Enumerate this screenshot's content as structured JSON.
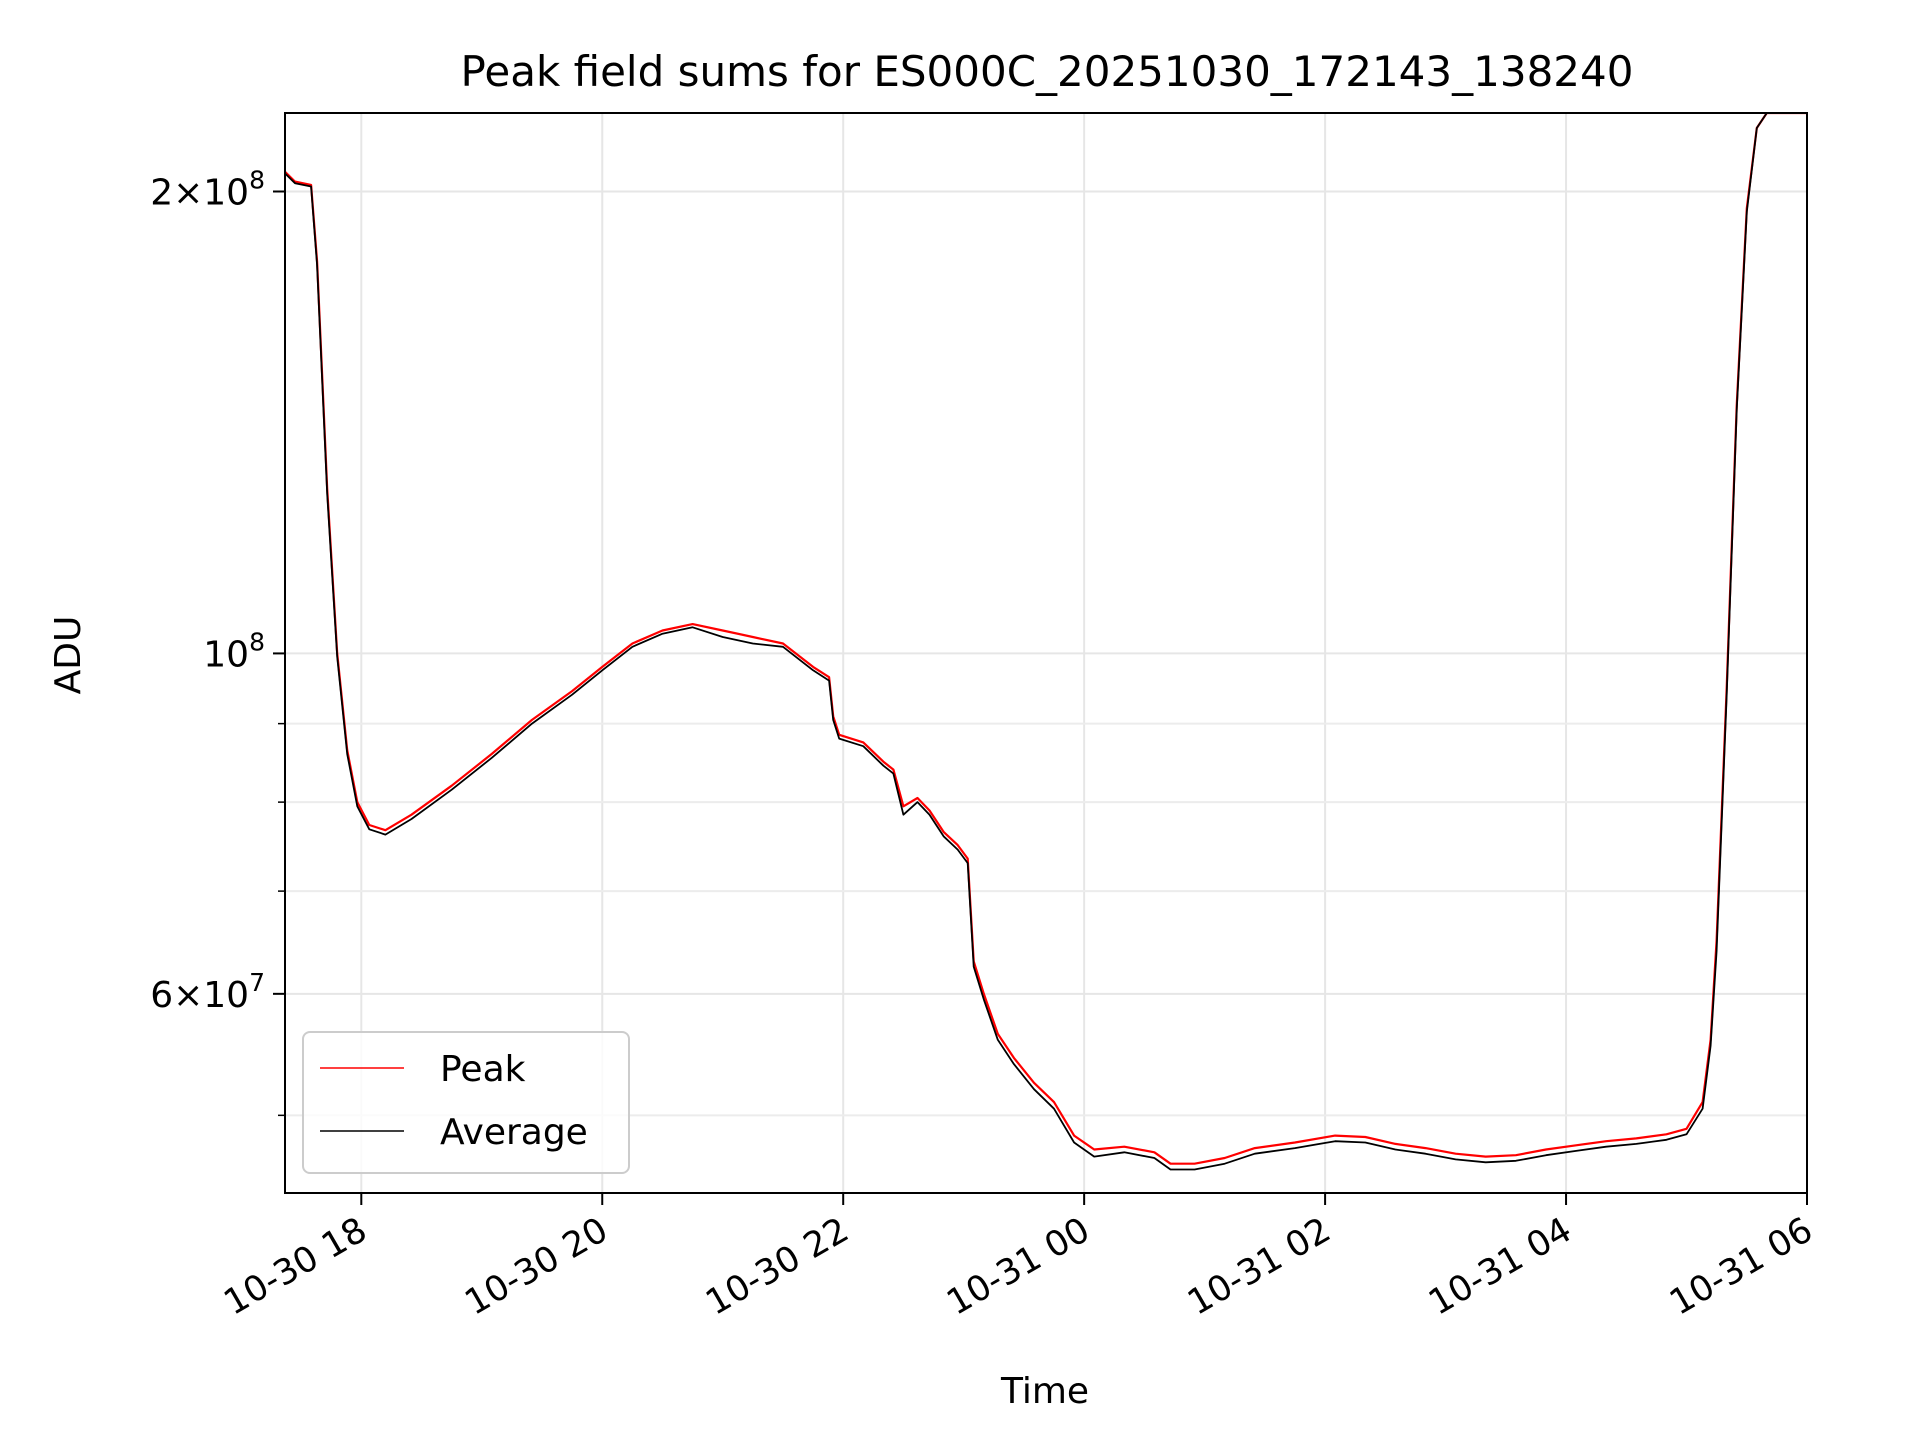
{
  "chart_data": {
    "type": "line",
    "title": "Peak field sums for ES000C_20251030_172143_138240",
    "xlabel": "Time",
    "ylabel": "ADU",
    "yscale": "log",
    "xlim": [
      "2025-10-30 17:22",
      "2025-10-31 06:00"
    ],
    "ylim": [
      44500000,
      225000000
    ],
    "x_ticks": [
      {
        "value": "2025-10-30 18:00",
        "label": "10-30 18"
      },
      {
        "value": "2025-10-30 20:00",
        "label": "10-30 20"
      },
      {
        "value": "2025-10-30 22:00",
        "label": "10-30 22"
      },
      {
        "value": "2025-10-31 00:00",
        "label": "10-31 00"
      },
      {
        "value": "2025-10-31 02:00",
        "label": "10-31 02"
      },
      {
        "value": "2025-10-31 04:00",
        "label": "10-31 04"
      },
      {
        "value": "2025-10-31 06:00",
        "label": "10-31 06"
      }
    ],
    "y_ticks_major": [
      {
        "value": 200000000,
        "mantissa": "2",
        "times": "×",
        "base": "10",
        "exponent": "8"
      },
      {
        "value": 100000000,
        "mantissa": "",
        "times": "",
        "base": "10",
        "exponent": "8"
      },
      {
        "value": 60000000,
        "mantissa": "6",
        "times": "×",
        "base": "10",
        "exponent": "7"
      }
    ],
    "y_ticks_minor": [
      50000000,
      70000000,
      80000000,
      90000000
    ],
    "grid": true,
    "legend_position": "lower-left",
    "series": [
      {
        "name": "Peak",
        "color": "#ff0000",
        "points": [
          [
            "2025-10-30 17:22",
            206000000
          ],
          [
            "2025-10-30 17:27",
            203000000
          ],
          [
            "2025-10-30 17:35",
            202000000
          ],
          [
            "2025-10-30 17:38",
            180000000
          ],
          [
            "2025-10-30 17:43",
            128000000
          ],
          [
            "2025-10-30 17:48",
            100000000
          ],
          [
            "2025-10-30 17:53",
            86500000
          ],
          [
            "2025-10-30 17:58",
            80000000
          ],
          [
            "2025-10-30 18:04",
            77300000
          ],
          [
            "2025-10-30 18:12",
            76700000
          ],
          [
            "2025-10-30 18:25",
            78500000
          ],
          [
            "2025-10-30 18:45",
            82000000
          ],
          [
            "2025-10-30 19:05",
            86000000
          ],
          [
            "2025-10-30 19:25",
            90500000
          ],
          [
            "2025-10-30 19:45",
            94500000
          ],
          [
            "2025-10-30 20:00",
            98000000
          ],
          [
            "2025-10-30 20:15",
            101500000
          ],
          [
            "2025-10-30 20:30",
            103500000
          ],
          [
            "2025-10-30 20:45",
            104500000
          ],
          [
            "2025-10-30 21:00",
            103500000
          ],
          [
            "2025-10-30 21:15",
            102500000
          ],
          [
            "2025-10-30 21:30",
            101500000
          ],
          [
            "2025-10-30 21:45",
            98000000
          ],
          [
            "2025-10-30 21:53",
            96500000
          ],
          [
            "2025-10-30 21:55",
            91000000
          ],
          [
            "2025-10-30 21:58",
            88500000
          ],
          [
            "2025-10-30 22:10",
            87500000
          ],
          [
            "2025-10-30 22:20",
            85000000
          ],
          [
            "2025-10-30 22:25",
            84000000
          ],
          [
            "2025-10-30 22:30",
            79500000
          ],
          [
            "2025-10-30 22:37",
            80500000
          ],
          [
            "2025-10-30 22:43",
            79000000
          ],
          [
            "2025-10-30 22:50",
            76500000
          ],
          [
            "2025-10-30 22:57",
            75000000
          ],
          [
            "2025-10-30 23:02",
            73500000
          ],
          [
            "2025-10-30 23:05",
            63000000
          ],
          [
            "2025-10-30 23:10",
            60000000
          ],
          [
            "2025-10-30 23:17",
            56500000
          ],
          [
            "2025-10-30 23:25",
            54500000
          ],
          [
            "2025-10-30 23:35",
            52500000
          ],
          [
            "2025-10-30 23:45",
            51000000
          ],
          [
            "2025-10-30 23:55",
            48500000
          ],
          [
            "2025-10-31 00:05",
            47500000
          ],
          [
            "2025-10-31 00:20",
            47700000
          ],
          [
            "2025-10-31 00:35",
            47300000
          ],
          [
            "2025-10-31 00:43",
            46500000
          ],
          [
            "2025-10-31 00:55",
            46500000
          ],
          [
            "2025-10-31 01:10",
            46900000
          ],
          [
            "2025-10-31 01:25",
            47600000
          ],
          [
            "2025-10-31 01:45",
            48000000
          ],
          [
            "2025-10-31 02:05",
            48500000
          ],
          [
            "2025-10-31 02:20",
            48400000
          ],
          [
            "2025-10-31 02:35",
            47900000
          ],
          [
            "2025-10-31 02:50",
            47600000
          ],
          [
            "2025-10-31 03:05",
            47200000
          ],
          [
            "2025-10-31 03:20",
            47000000
          ],
          [
            "2025-10-31 03:35",
            47100000
          ],
          [
            "2025-10-31 03:50",
            47500000
          ],
          [
            "2025-10-31 04:05",
            47800000
          ],
          [
            "2025-10-31 04:20",
            48100000
          ],
          [
            "2025-10-31 04:35",
            48300000
          ],
          [
            "2025-10-31 04:50",
            48600000
          ],
          [
            "2025-10-31 05:00",
            49000000
          ],
          [
            "2025-10-31 05:08",
            51000000
          ],
          [
            "2025-10-31 05:12",
            56000000
          ],
          [
            "2025-10-31 05:15",
            65000000
          ],
          [
            "2025-10-31 05:20",
            95000000
          ],
          [
            "2025-10-31 05:25",
            145000000
          ],
          [
            "2025-10-31 05:30",
            195000000
          ],
          [
            "2025-10-31 05:35",
            220000000
          ],
          [
            "2025-10-31 05:40",
            225000000
          ],
          [
            "2025-10-31 06:00",
            225000000
          ]
        ]
      },
      {
        "name": "Average",
        "color": "#000000",
        "points": [
          [
            "2025-10-30 17:22",
            205500000
          ],
          [
            "2025-10-30 17:27",
            202500000
          ],
          [
            "2025-10-30 17:35",
            201500000
          ],
          [
            "2025-10-30 17:38",
            179000000
          ],
          [
            "2025-10-30 17:43",
            127000000
          ],
          [
            "2025-10-30 17:48",
            99500000
          ],
          [
            "2025-10-30 17:53",
            86000000
          ],
          [
            "2025-10-30 17:58",
            79500000
          ],
          [
            "2025-10-30 18:04",
            76800000
          ],
          [
            "2025-10-30 18:12",
            76200000
          ],
          [
            "2025-10-30 18:25",
            78000000
          ],
          [
            "2025-10-30 18:45",
            81500000
          ],
          [
            "2025-10-30 19:05",
            85500000
          ],
          [
            "2025-10-30 19:25",
            90000000
          ],
          [
            "2025-10-30 19:45",
            94000000
          ],
          [
            "2025-10-30 20:00",
            97500000
          ],
          [
            "2025-10-30 20:15",
            101000000
          ],
          [
            "2025-10-30 20:30",
            103000000
          ],
          [
            "2025-10-30 20:45",
            104000000
          ],
          [
            "2025-10-30 21:00",
            102500000
          ],
          [
            "2025-10-30 21:15",
            101500000
          ],
          [
            "2025-10-30 21:30",
            101000000
          ],
          [
            "2025-10-30 21:45",
            97500000
          ],
          [
            "2025-10-30 21:53",
            96000000
          ],
          [
            "2025-10-30 21:55",
            90500000
          ],
          [
            "2025-10-30 21:58",
            88000000
          ],
          [
            "2025-10-30 22:10",
            87000000
          ],
          [
            "2025-10-30 22:20",
            84500000
          ],
          [
            "2025-10-30 22:25",
            83500000
          ],
          [
            "2025-10-30 22:30",
            78500000
          ],
          [
            "2025-10-30 22:37",
            80000000
          ],
          [
            "2025-10-30 22:43",
            78500000
          ],
          [
            "2025-10-30 22:50",
            76000000
          ],
          [
            "2025-10-30 22:57",
            74500000
          ],
          [
            "2025-10-30 23:02",
            73000000
          ],
          [
            "2025-10-30 23:05",
            62500000
          ],
          [
            "2025-10-30 23:10",
            59500000
          ],
          [
            "2025-10-30 23:17",
            56000000
          ],
          [
            "2025-10-30 23:25",
            54000000
          ],
          [
            "2025-10-30 23:35",
            52000000
          ],
          [
            "2025-10-30 23:45",
            50500000
          ],
          [
            "2025-10-30 23:55",
            48000000
          ],
          [
            "2025-10-31 00:05",
            47000000
          ],
          [
            "2025-10-31 00:20",
            47300000
          ],
          [
            "2025-10-31 00:35",
            46900000
          ],
          [
            "2025-10-31 00:43",
            46100000
          ],
          [
            "2025-10-31 00:55",
            46100000
          ],
          [
            "2025-10-31 01:10",
            46500000
          ],
          [
            "2025-10-31 01:25",
            47200000
          ],
          [
            "2025-10-31 01:45",
            47600000
          ],
          [
            "2025-10-31 02:05",
            48100000
          ],
          [
            "2025-10-31 02:20",
            48000000
          ],
          [
            "2025-10-31 02:35",
            47500000
          ],
          [
            "2025-10-31 02:50",
            47200000
          ],
          [
            "2025-10-31 03:05",
            46800000
          ],
          [
            "2025-10-31 03:20",
            46600000
          ],
          [
            "2025-10-31 03:35",
            46700000
          ],
          [
            "2025-10-31 03:50",
            47100000
          ],
          [
            "2025-10-31 04:05",
            47400000
          ],
          [
            "2025-10-31 04:20",
            47700000
          ],
          [
            "2025-10-31 04:35",
            47900000
          ],
          [
            "2025-10-31 04:50",
            48200000
          ],
          [
            "2025-10-31 05:00",
            48600000
          ],
          [
            "2025-10-31 05:08",
            50500000
          ],
          [
            "2025-10-31 05:12",
            55500000
          ],
          [
            "2025-10-31 05:15",
            64000000
          ],
          [
            "2025-10-31 05:20",
            94000000
          ],
          [
            "2025-10-31 05:25",
            144000000
          ],
          [
            "2025-10-31 05:30",
            194000000
          ],
          [
            "2025-10-31 05:35",
            220000000
          ],
          [
            "2025-10-31 05:40",
            225000000
          ],
          [
            "2025-10-31 06:00",
            225000000
          ]
        ]
      }
    ]
  }
}
